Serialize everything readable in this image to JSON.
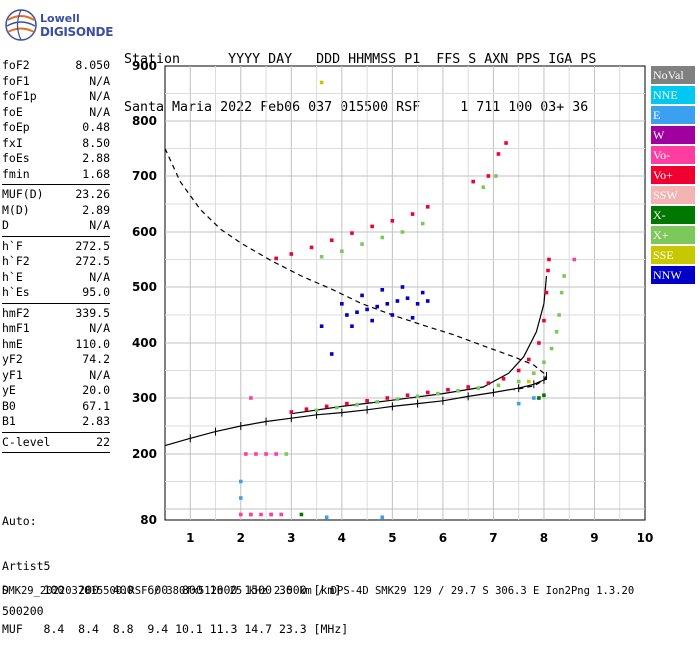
{
  "logo": {
    "line1": "Lowell",
    "line2": "DIGISONDE"
  },
  "header": {
    "labels": "Station      YYYY DAY   DDD HHMMSS P1  FFS S AXN PPS IGA PS",
    "values": "Santa Maria 2022 Feb06 037 015500 RSF     1 711 100 03+ 36"
  },
  "params": [
    {
      "name": "foF2",
      "value": "8.050"
    },
    {
      "name": "foF1",
      "value": "N/A"
    },
    {
      "name": "foF1p",
      "value": "N/A"
    },
    {
      "name": "foE",
      "value": "N/A"
    },
    {
      "name": "foEp",
      "value": "0.48"
    },
    {
      "name": "fxI",
      "value": "8.50"
    },
    {
      "name": "foEs",
      "value": "2.88"
    },
    {
      "name": "fmin",
      "value": "1.68"
    },
    {
      "sep": true
    },
    {
      "name": "MUF(D)",
      "value": "23.26"
    },
    {
      "name": "M(D)",
      "value": "2.89"
    },
    {
      "name": "D",
      "value": "N/A"
    },
    {
      "sep": true
    },
    {
      "name": "h`F",
      "value": "272.5"
    },
    {
      "name": "h`F2",
      "value": "272.5"
    },
    {
      "name": "h`E",
      "value": "N/A"
    },
    {
      "name": "h`Es",
      "value": "95.0"
    },
    {
      "sep": true
    },
    {
      "name": "hmF2",
      "value": "339.5"
    },
    {
      "name": "hmF1",
      "value": "N/A"
    },
    {
      "name": "hmE",
      "value": "110.0"
    },
    {
      "name": "yF2",
      "value": "74.2"
    },
    {
      "name": "yF1",
      "value": "N/A"
    },
    {
      "name": "yE",
      "value": "20.0"
    },
    {
      "name": "B0",
      "value": "67.1"
    },
    {
      "name": "B1",
      "value": "2.83"
    },
    {
      "sep": true
    },
    {
      "name": "C-level",
      "value": "22"
    },
    {
      "sep": true
    }
  ],
  "auto": {
    "line1": "Auto:",
    "line2": "Artist5",
    "line3": "500200"
  },
  "legend": [
    {
      "label": "NoVal",
      "color": "#808080"
    },
    {
      "label": "NNE",
      "color": "#00c8f0"
    },
    {
      "label": "E",
      "color": "#3ca0f0"
    },
    {
      "label": "W",
      "color": "#a000a0"
    },
    {
      "label": "Vo-",
      "color": "#ff3ca0"
    },
    {
      "label": "Vo+",
      "color": "#f00030"
    },
    {
      "label": "SSW",
      "color": "#f4b4b4"
    },
    {
      "label": "X-",
      "color": "#007800"
    },
    {
      "label": "X+",
      "color": "#7cc85a"
    },
    {
      "label": "SSE",
      "color": "#c8c800"
    },
    {
      "label": "NNW",
      "color": "#0000c8"
    }
  ],
  "footer": {
    "line1": "D     100  200  400  600  800 1000 1500 3000 [km]",
    "line2": "MUF   8.4  8.4  8.8  9.4 10.1 11.3 14.7 23.3 [MHz]",
    "line3": "SMK29_2022037015500.RSF / 380fx512h 25 kHz 2.5 km / DPS-4D SMK29 129 / 29.7 S 306.3 E Ion2Png 1.3.20"
  },
  "chart_data": {
    "type": "scatter",
    "title": "",
    "xlabel": "",
    "ylabel": "",
    "xlim": [
      0.5,
      10
    ],
    "ylim": [
      80,
      900
    ],
    "x_ticks": [
      1,
      2,
      3,
      4,
      5,
      6,
      7,
      8,
      9,
      10
    ],
    "y_ticks": [
      80,
      200,
      300,
      400,
      500,
      600,
      700,
      800,
      900
    ],
    "grid": true,
    "series": [
      {
        "name": "Vo+",
        "color": "#f00030",
        "points": [
          [
            3.0,
            275
          ],
          [
            3.3,
            280
          ],
          [
            3.7,
            285
          ],
          [
            4.1,
            290
          ],
          [
            4.5,
            295
          ],
          [
            4.9,
            300
          ],
          [
            5.3,
            305
          ],
          [
            5.7,
            310
          ],
          [
            6.1,
            315
          ],
          [
            6.5,
            320
          ],
          [
            6.9,
            327
          ],
          [
            7.2,
            335
          ],
          [
            7.5,
            350
          ],
          [
            7.7,
            370
          ],
          [
            7.9,
            400
          ],
          [
            8.0,
            440
          ],
          [
            8.05,
            490
          ],
          [
            8.08,
            530
          ],
          [
            8.1,
            550
          ],
          [
            2.7,
            552
          ],
          [
            3.0,
            560
          ],
          [
            3.4,
            572
          ],
          [
            3.8,
            585
          ],
          [
            4.2,
            598
          ],
          [
            4.6,
            610
          ],
          [
            5.0,
            620
          ],
          [
            5.4,
            632
          ],
          [
            5.7,
            645
          ],
          [
            6.6,
            690
          ],
          [
            6.9,
            700
          ],
          [
            7.1,
            740
          ],
          [
            7.25,
            760
          ]
        ]
      },
      {
        "name": "X+",
        "color": "#7cc85a",
        "points": [
          [
            3.5,
            278
          ],
          [
            3.9,
            283
          ],
          [
            4.3,
            288
          ],
          [
            4.7,
            293
          ],
          [
            5.1,
            298
          ],
          [
            5.5,
            303
          ],
          [
            5.9,
            308
          ],
          [
            6.3,
            313
          ],
          [
            6.7,
            318
          ],
          [
            7.1,
            323
          ],
          [
            7.5,
            330
          ],
          [
            7.8,
            345
          ],
          [
            8.0,
            365
          ],
          [
            8.15,
            390
          ],
          [
            8.25,
            420
          ],
          [
            8.3,
            450
          ],
          [
            8.35,
            490
          ],
          [
            8.4,
            520
          ],
          [
            3.6,
            555
          ],
          [
            4.0,
            565
          ],
          [
            4.4,
            578
          ],
          [
            4.8,
            590
          ],
          [
            5.2,
            600
          ],
          [
            5.6,
            615
          ],
          [
            6.8,
            680
          ],
          [
            7.05,
            700
          ],
          [
            2.9,
            200
          ],
          [
            2.2,
            90
          ],
          [
            2.6,
            90
          ]
        ]
      },
      {
        "name": "Vo-",
        "color": "#ff3ca0",
        "points": [
          [
            2.0,
            90
          ],
          [
            2.2,
            90
          ],
          [
            2.4,
            90
          ],
          [
            2.6,
            90
          ],
          [
            2.8,
            90
          ],
          [
            2.1,
            200
          ],
          [
            2.3,
            200
          ],
          [
            2.5,
            200
          ],
          [
            2.7,
            200
          ],
          [
            2.2,
            300
          ],
          [
            8.6,
            550
          ]
        ]
      },
      {
        "name": "NNW",
        "color": "#0000c8",
        "points": [
          [
            4.1,
            450
          ],
          [
            4.3,
            455
          ],
          [
            4.5,
            460
          ],
          [
            4.7,
            465
          ],
          [
            4.9,
            470
          ],
          [
            5.1,
            475
          ],
          [
            5.3,
            480
          ],
          [
            5.5,
            470
          ],
          [
            5.7,
            475
          ],
          [
            4.2,
            430
          ],
          [
            4.6,
            440
          ],
          [
            5.0,
            450
          ],
          [
            5.4,
            445
          ],
          [
            4.4,
            485
          ],
          [
            4.8,
            495
          ],
          [
            5.2,
            500
          ],
          [
            5.6,
            490
          ],
          [
            4.0,
            470
          ],
          [
            3.6,
            430
          ],
          [
            3.8,
            380
          ]
        ]
      },
      {
        "name": "E",
        "color": "#3ca0f0",
        "points": [
          [
            2.0,
            120
          ],
          [
            2.0,
            150
          ],
          [
            3.7,
            85
          ],
          [
            4.8,
            85
          ],
          [
            7.5,
            290
          ],
          [
            7.8,
            300
          ]
        ]
      },
      {
        "name": "X-",
        "color": "#007800",
        "points": [
          [
            7.9,
            300
          ],
          [
            8.0,
            305
          ],
          [
            3.2,
            90
          ]
        ]
      },
      {
        "name": "SSE",
        "color": "#c8c800",
        "points": [
          [
            3.6,
            870
          ],
          [
            7.7,
            330
          ]
        ]
      }
    ],
    "lines": [
      {
        "name": "profile",
        "style": "solid-ticks",
        "points": [
          [
            0.5,
            215
          ],
          [
            1.0,
            228
          ],
          [
            1.5,
            240
          ],
          [
            2.0,
            250
          ],
          [
            2.5,
            258
          ],
          [
            3.0,
            264
          ],
          [
            3.5,
            270
          ],
          [
            4.0,
            274
          ],
          [
            4.5,
            279
          ],
          [
            5.0,
            285
          ],
          [
            5.5,
            290
          ],
          [
            6.0,
            295
          ],
          [
            6.5,
            303
          ],
          [
            7.0,
            310
          ],
          [
            7.5,
            318
          ],
          [
            7.8,
            325
          ],
          [
            8.0,
            333
          ],
          [
            8.05,
            340
          ]
        ]
      },
      {
        "name": "o-trace",
        "style": "solid",
        "points": [
          [
            3.0,
            272
          ],
          [
            4.0,
            285
          ],
          [
            5.0,
            296
          ],
          [
            6.0,
            308
          ],
          [
            6.8,
            320
          ],
          [
            7.3,
            345
          ],
          [
            7.6,
            375
          ],
          [
            7.85,
            420
          ],
          [
            8.0,
            470
          ],
          [
            8.05,
            520
          ]
        ]
      },
      {
        "name": "muf-curve",
        "style": "dashed",
        "points": [
          [
            0.5,
            750
          ],
          [
            0.8,
            690
          ],
          [
            1.2,
            640
          ],
          [
            1.6,
            605
          ],
          [
            2.0,
            580
          ],
          [
            2.6,
            548
          ],
          [
            3.2,
            520
          ],
          [
            3.8,
            496
          ],
          [
            4.4,
            470
          ],
          [
            5.0,
            450
          ],
          [
            5.6,
            432
          ],
          [
            6.2,
            415
          ],
          [
            6.8,
            395
          ],
          [
            7.4,
            375
          ],
          [
            7.8,
            360
          ],
          [
            8.0,
            345
          ],
          [
            8.05,
            335
          ],
          [
            7.8,
            322
          ],
          [
            7.4,
            315
          ]
        ]
      }
    ]
  }
}
